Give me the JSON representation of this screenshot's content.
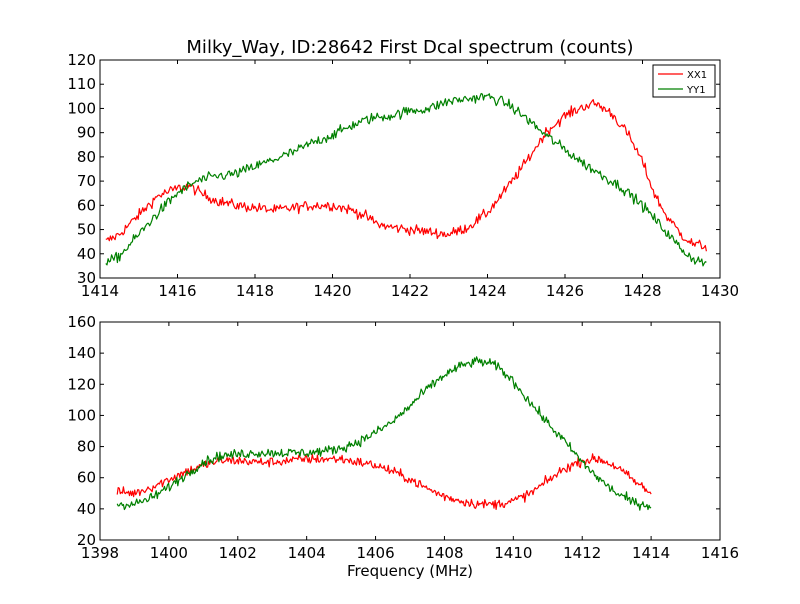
{
  "title": "Milky_Way, ID:28642 First Dcal spectrum (counts)",
  "colors": {
    "XX1": "#ff0000",
    "YY1": "#008000"
  },
  "legend": {
    "placement": "upper-right",
    "entries": [
      "XX1",
      "YY1"
    ]
  },
  "chart_data": [
    {
      "type": "line",
      "title": "Milky_Way, ID:28642 First Dcal spectrum (counts)",
      "xlabel": "",
      "ylabel": "",
      "xlim": [
        1414,
        1430
      ],
      "ylim": [
        30,
        120
      ],
      "xticks": [
        "1414",
        "1416",
        "1418",
        "1420",
        "1422",
        "1424",
        "1426",
        "1428",
        "1430"
      ],
      "yticks": [
        "30",
        "40",
        "50",
        "60",
        "70",
        "80",
        "90",
        "100",
        "110",
        "120"
      ],
      "grid": false,
      "legend": "upper-right",
      "x_range": [
        1414.15,
        1429.65
      ],
      "series": [
        {
          "name": "XX1",
          "color": "#ff0000",
          "x": [
            1414.15,
            1414.5,
            1415.0,
            1415.5,
            1416.0,
            1416.3,
            1416.6,
            1417.0,
            1417.5,
            1418.0,
            1418.5,
            1419.0,
            1419.5,
            1420.0,
            1420.5,
            1420.8,
            1421.0,
            1421.2,
            1421.5,
            1422.0,
            1422.5,
            1423.0,
            1423.5,
            1424.0,
            1424.5,
            1425.0,
            1425.5,
            1426.0,
            1426.5,
            1426.8,
            1427.2,
            1427.6,
            1428.0,
            1428.3,
            1428.6,
            1429.0,
            1429.3,
            1429.65
          ],
          "values": [
            45,
            48,
            56,
            64,
            67,
            68,
            65,
            62,
            60,
            59,
            58,
            59,
            60,
            60,
            58,
            56,
            54,
            52,
            51,
            50,
            49,
            48,
            51,
            57,
            67,
            78,
            90,
            97,
            101,
            102,
            98,
            90,
            78,
            65,
            56,
            48,
            44,
            43
          ]
        },
        {
          "name": "YY1",
          "color": "#008000",
          "x": [
            1414.15,
            1414.5,
            1415.0,
            1415.5,
            1416.0,
            1416.5,
            1417.0,
            1417.5,
            1418.0,
            1418.5,
            1419.0,
            1419.5,
            1420.0,
            1420.5,
            1421.0,
            1421.5,
            1422.0,
            1422.5,
            1423.0,
            1423.5,
            1424.0,
            1424.5,
            1425.0,
            1425.5,
            1426.0,
            1426.5,
            1427.0,
            1427.5,
            1428.0,
            1428.5,
            1429.0,
            1429.3,
            1429.65
          ],
          "values": [
            36,
            39,
            48,
            57,
            65,
            70,
            72,
            73,
            76,
            79,
            82,
            86,
            89,
            93,
            96,
            97,
            99,
            100,
            103,
            104,
            105,
            102,
            96,
            89,
            83,
            77,
            72,
            67,
            60,
            51,
            42,
            38,
            36
          ]
        }
      ]
    },
    {
      "type": "line",
      "title": "",
      "xlabel": "Frequency (MHz)",
      "ylabel": "",
      "xlim": [
        1398,
        1416
      ],
      "ylim": [
        20,
        160
      ],
      "xticks": [
        "1398",
        "1400",
        "1402",
        "1404",
        "1406",
        "1408",
        "1410",
        "1412",
        "1414",
        "1416"
      ],
      "yticks": [
        "20",
        "40",
        "60",
        "80",
        "100",
        "120",
        "140",
        "160"
      ],
      "grid": false,
      "x_range": [
        1398.5,
        1414.0
      ],
      "series": [
        {
          "name": "XX1",
          "color": "#ff0000",
          "x": [
            1398.5,
            1399.0,
            1399.5,
            1400.0,
            1400.5,
            1401.0,
            1401.5,
            1402.0,
            1402.5,
            1403.0,
            1403.5,
            1404.0,
            1404.5,
            1405.0,
            1405.5,
            1406.0,
            1406.5,
            1407.0,
            1407.5,
            1408.0,
            1408.5,
            1409.0,
            1409.5,
            1410.0,
            1410.5,
            1411.0,
            1411.5,
            1412.0,
            1412.5,
            1413.0,
            1413.5,
            1414.0
          ],
          "values": [
            51,
            50,
            54,
            59,
            64,
            68,
            71,
            71,
            70,
            70,
            71,
            72,
            72,
            72,
            70,
            68,
            64,
            59,
            53,
            48,
            45,
            43,
            43,
            45,
            50,
            58,
            66,
            71,
            72,
            67,
            58,
            50
          ]
        },
        {
          "name": "YY1",
          "color": "#008000",
          "x": [
            1398.5,
            1399.0,
            1399.5,
            1400.0,
            1400.5,
            1401.0,
            1401.5,
            1402.0,
            1402.5,
            1403.0,
            1403.5,
            1404.0,
            1404.5,
            1405.0,
            1405.5,
            1406.0,
            1406.5,
            1407.0,
            1407.5,
            1408.0,
            1408.5,
            1409.0,
            1409.5,
            1410.0,
            1410.5,
            1411.0,
            1411.5,
            1412.0,
            1412.5,
            1413.0,
            1413.5,
            1414.0
          ],
          "values": [
            43,
            43,
            47,
            54,
            62,
            70,
            74,
            75,
            76,
            76,
            76,
            76,
            77,
            79,
            83,
            89,
            96,
            106,
            117,
            126,
            132,
            135,
            132,
            122,
            108,
            95,
            83,
            70,
            59,
            50,
            44,
            42
          ]
        }
      ]
    }
  ]
}
